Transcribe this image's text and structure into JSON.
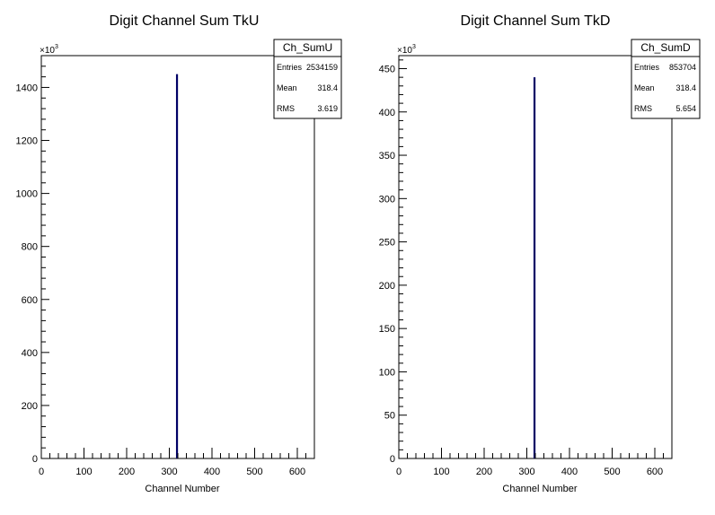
{
  "chart_data": [
    {
      "type": "bar",
      "title": "Digit Channel Sum TkU",
      "xlabel": "Channel Number",
      "ylabel": "",
      "multiplier_label": "×10",
      "multiplier_exp": "3",
      "xlim": [
        0,
        640
      ],
      "ylim": [
        0,
        1520
      ],
      "xticks": [
        "0",
        "100",
        "200",
        "300",
        "400",
        "500",
        "600"
      ],
      "xtick_values": [
        0,
        100,
        200,
        300,
        400,
        500,
        600
      ],
      "yticks": [
        "0",
        "200",
        "400",
        "600",
        "800",
        "1000",
        "1200",
        "1400"
      ],
      "ytick_values": [
        0,
        200,
        400,
        600,
        800,
        1000,
        1200,
        1400
      ],
      "bars": [
        {
          "x": 318,
          "value": 1450
        }
      ],
      "bar_color": "#000066",
      "stats": {
        "name": "Ch_SumU",
        "rows": [
          {
            "label": "Entries",
            "value": "2534159"
          },
          {
            "label": "Mean",
            "value": "318.4"
          },
          {
            "label": "RMS",
            "value": "3.619"
          }
        ]
      }
    },
    {
      "type": "bar",
      "title": "Digit Channel Sum TkD",
      "xlabel": "Channel Number",
      "ylabel": "",
      "multiplier_label": "×10",
      "multiplier_exp": "3",
      "xlim": [
        0,
        640
      ],
      "ylim": [
        0,
        465
      ],
      "xticks": [
        "0",
        "100",
        "200",
        "300",
        "400",
        "500",
        "600"
      ],
      "xtick_values": [
        0,
        100,
        200,
        300,
        400,
        500,
        600
      ],
      "yticks": [
        "0",
        "50",
        "100",
        "150",
        "200",
        "250",
        "300",
        "350",
        "400",
        "450"
      ],
      "ytick_values": [
        0,
        50,
        100,
        150,
        200,
        250,
        300,
        350,
        400,
        450
      ],
      "bars": [
        {
          "x": 318,
          "value": 440
        }
      ],
      "bar_color": "#000066",
      "stats": {
        "name": "Ch_SumD",
        "rows": [
          {
            "label": "Entries",
            "value": "853704"
          },
          {
            "label": "Mean",
            "value": "318.4"
          },
          {
            "label": "RMS",
            "value": "5.654"
          }
        ]
      }
    }
  ]
}
